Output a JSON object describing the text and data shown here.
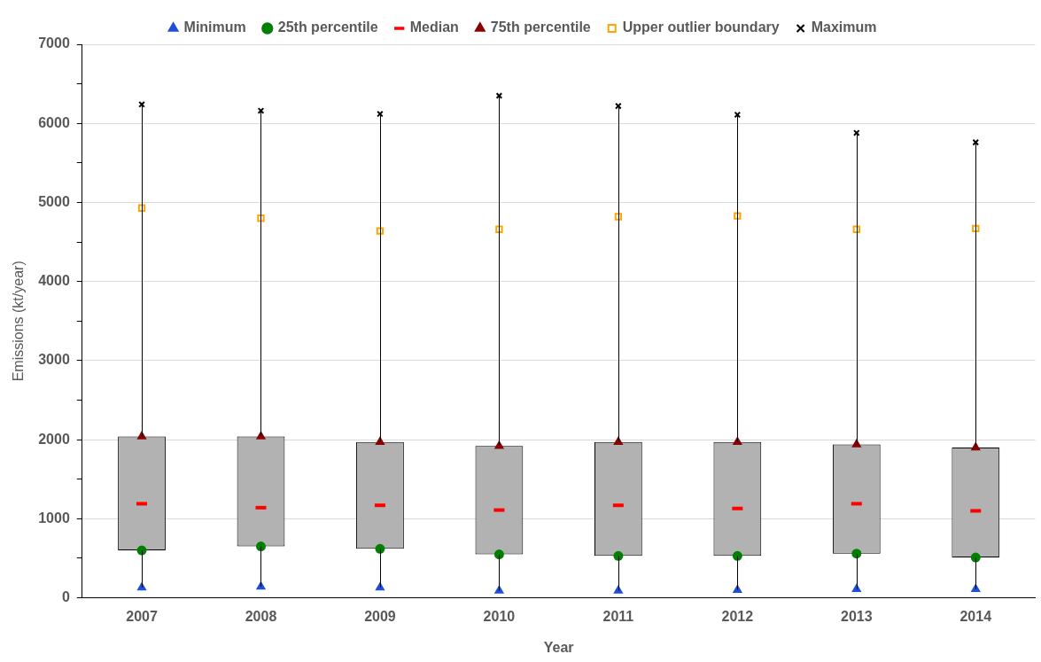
{
  "chart_data": {
    "type": "bar",
    "categories": [
      "2007",
      "2008",
      "2009",
      "2010",
      "2011",
      "2012",
      "2013",
      "2014"
    ],
    "xlabel": "Year",
    "ylabel": "Emissions (kt/year)",
    "ylim": [
      0,
      7000
    ],
    "yticks": [
      0,
      {
        "value": 500,
        "label": null
      },
      1000,
      {
        "value": 1500,
        "label": null
      },
      2000,
      {
        "value": 2500,
        "label": null
      },
      3000,
      {
        "value": 3500,
        "label": null
      },
      4000,
      {
        "value": 4500,
        "label": null
      },
      5000,
      {
        "value": 5500,
        "label": null
      },
      6000,
      {
        "value": 6500,
        "label": null
      },
      7000
    ],
    "grid": "y",
    "legend": "top",
    "series": [
      {
        "color": "#b2b2b2",
        "base": [
          600,
          650,
          620,
          550,
          530,
          530,
          560,
          510
        ],
        "values": [
          1440,
          1390,
          1350,
          1370,
          1440,
          1440,
          1380,
          1390
        ]
      },
      {
        "type": "scatter",
        "name": "Minimum",
        "color": "#1f4fd8",
        "marker": "triangle",
        "values": [
          130,
          140,
          130,
          90,
          90,
          100,
          110,
          110
        ]
      },
      {
        "type": "scatter",
        "name": "25th percentile",
        "color": "#008000",
        "marker": "circle",
        "values": [
          600,
          650,
          620,
          550,
          530,
          530,
          560,
          510
        ]
      },
      {
        "type": "scatter",
        "name": "Median",
        "color": "#ff0000",
        "values": [
          1190,
          1140,
          1170,
          1110,
          1170,
          1130,
          1190,
          1100
        ]
      },
      {
        "type": "scatter",
        "name": "75th percentile",
        "color": "#8b0000",
        "marker": "triangle",
        "values": [
          2040,
          2040,
          1970,
          1920,
          1970,
          1970,
          1940,
          1900
        ]
      },
      {
        "type": "scatter",
        "name": "Upper outlier boundary",
        "color": "#ffa500",
        "marker": "square",
        "values": [
          4930,
          4800,
          4640,
          4660,
          4820,
          4830,
          4660,
          4670
        ]
      },
      {
        "type": "scatter",
        "name": "Maximum",
        "color": "#000000",
        "marker": "cross",
        "values": [
          6240,
          6160,
          6120,
          6350,
          6220,
          6110,
          5880,
          5760
        ]
      }
    ]
  }
}
